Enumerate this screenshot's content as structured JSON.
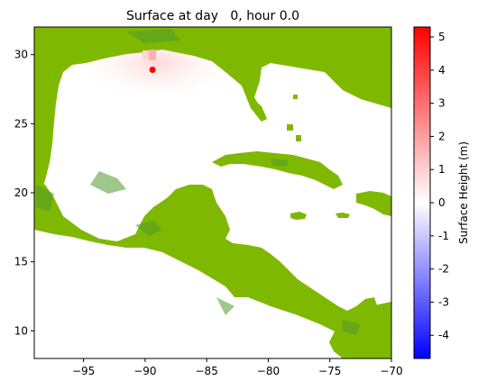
{
  "chart_data": {
    "type": "heatmap",
    "title": "Surface at day   0, hour 0.0",
    "xlim": [
      -99,
      -70
    ],
    "ylim": [
      8,
      32
    ],
    "x_ticks": [
      -95,
      -90,
      -85,
      -80,
      -75,
      -70
    ],
    "x_tick_labels": [
      "−95",
      "−90",
      "−85",
      "−80",
      "−75",
      "−70"
    ],
    "y_ticks": [
      10,
      15,
      20,
      25,
      30
    ],
    "y_tick_labels": [
      "10",
      "15",
      "20",
      "25",
      "30"
    ],
    "colorbar": {
      "label": "Surface Height (m)",
      "range": [
        -4.7,
        5.3
      ],
      "colormap": "bwr",
      "ticks": [
        -4,
        -3,
        -2,
        -1,
        0,
        1,
        2,
        3,
        4,
        5
      ],
      "tick_labels": [
        "-4",
        "-3",
        "-2",
        "-1",
        "0",
        "1",
        "2",
        "3",
        "4",
        "5"
      ]
    },
    "marker": {
      "x": -89.4,
      "y": 28.9,
      "color": "#ff0000"
    },
    "colors": {
      "land": "#7fb800",
      "land_dark": "#4f9a2e",
      "water_zero": "#ffffff",
      "positive": "#ff0000",
      "negative": "#0000ff"
    }
  }
}
